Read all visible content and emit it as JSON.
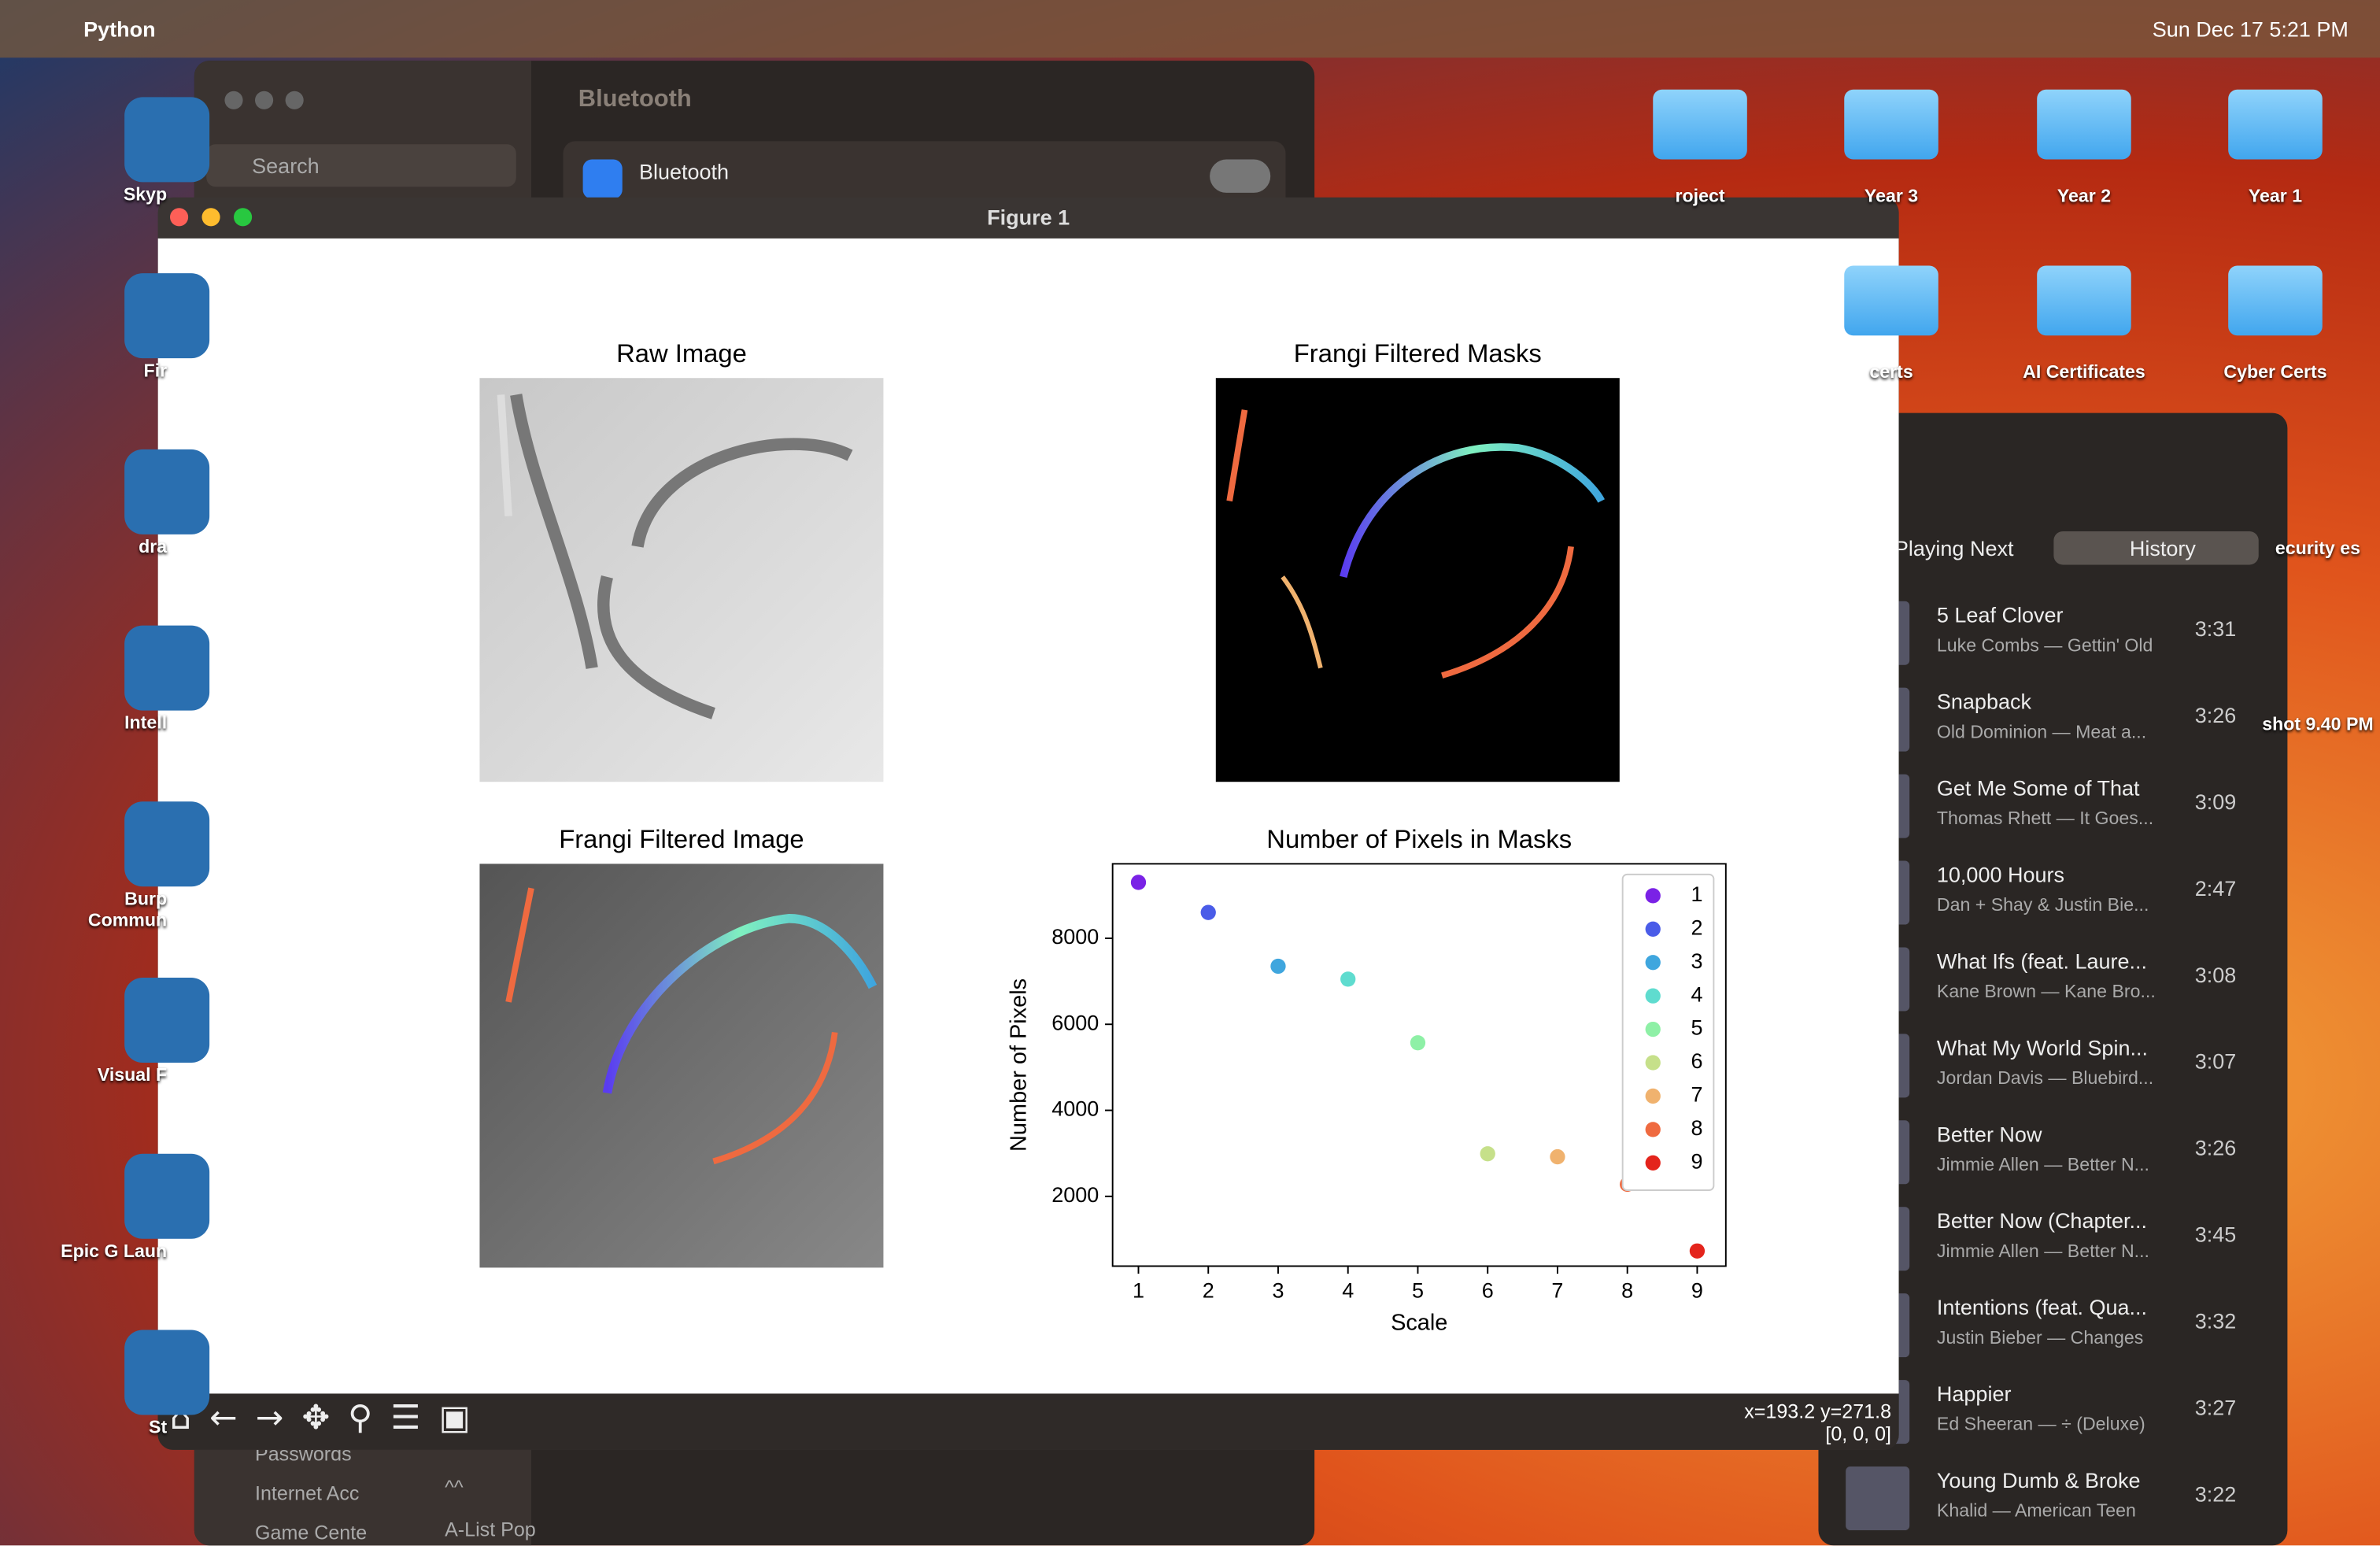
{
  "menu_bar": {
    "app": "Python",
    "clock": "Sun Dec 17  5:21 PM"
  },
  "desktop_left": [
    "Skyp",
    "Fir",
    "dra",
    "Intell",
    "Burp Commun",
    "Visual F",
    "Epic G Laun",
    "St"
  ],
  "desktop_right": [
    "roject",
    "Year 3",
    "Year 2",
    "Year 1",
    "certs",
    "AI Certificates",
    "Cyber Certs",
    "ecurity es",
    "shot 9.40 PM"
  ],
  "settings_window": {
    "title": "Bluetooth",
    "search": "Search",
    "row": "Bluetooth",
    "sidebar": [
      "Passwords",
      "Internet Acc",
      "Game Cente"
    ],
    "playlists": [
      "^^",
      "A-List Pop"
    ]
  },
  "figure_window": {
    "title": "Figure 1",
    "subplot_titles": [
      "Raw Image",
      "Frangi Filtered Masks",
      "Frangi Filtered Image"
    ],
    "status": [
      "x=193.2 y=271.8",
      "[0, 0, 0]"
    ]
  },
  "chart_data": {
    "type": "scatter",
    "title": "Number of Pixels in Masks",
    "x_label": "Scale",
    "y_label": "Number of Pixels",
    "xlim": [
      0.63,
      9.41
    ],
    "ylim": [
      378,
      9731
    ],
    "xticks": [
      1,
      2,
      3,
      4,
      5,
      6,
      7,
      8,
      9
    ],
    "yticks": [
      2000,
      4000,
      6000,
      8000
    ],
    "legend": "upper right",
    "series": [
      {
        "name": "1",
        "color": "#7a22e6",
        "x": [
          1
        ],
        "values": [
          9300
        ]
      },
      {
        "name": "2",
        "color": "#4a5ce8",
        "x": [
          2
        ],
        "values": [
          8600
        ]
      },
      {
        "name": "3",
        "color": "#3fa6de",
        "x": [
          3
        ],
        "values": [
          7350
        ]
      },
      {
        "name": "4",
        "color": "#5fdccf",
        "x": [
          4
        ],
        "values": [
          7050
        ]
      },
      {
        "name": "5",
        "color": "#8ef0a6",
        "x": [
          5
        ],
        "values": [
          5570
        ]
      },
      {
        "name": "6",
        "color": "#c6e08a",
        "x": [
          6
        ],
        "values": [
          2990
        ]
      },
      {
        "name": "7",
        "color": "#f0b26e",
        "x": [
          7
        ],
        "values": [
          2920
        ]
      },
      {
        "name": "8",
        "color": "#ef6a40",
        "x": [
          8
        ],
        "values": [
          2280
        ]
      },
      {
        "name": "9",
        "color": "#e4241c",
        "x": [
          9
        ],
        "values": [
          730
        ]
      }
    ]
  },
  "music": {
    "tabs": [
      "Playing Next",
      "History"
    ],
    "tracks": [
      {
        "title": "5 Leaf Clover",
        "artist": "Luke Combs — Gettin' Old",
        "time": "3:31"
      },
      {
        "title": "Snapback",
        "artist": "Old Dominion — Meat a...",
        "time": "3:26"
      },
      {
        "title": "Get Me Some of That",
        "artist": "Thomas Rhett — It Goes...",
        "time": "3:09"
      },
      {
        "title": "10,000 Hours",
        "artist": "Dan + Shay & Justin Bie...",
        "time": "2:47"
      },
      {
        "title": "What Ifs (feat. Laure...",
        "artist": "Kane Brown — Kane Bro...",
        "time": "3:08"
      },
      {
        "title": "What My World Spin...",
        "artist": "Jordan Davis — Bluebird...",
        "time": "3:07"
      },
      {
        "title": "Better Now",
        "artist": "Jimmie Allen — Better N...",
        "time": "3:26"
      },
      {
        "title": "Better Now (Chapter...",
        "artist": "Jimmie Allen — Better N...",
        "time": "3:45"
      },
      {
        "title": "Intentions (feat. Qua...",
        "artist": "Justin Bieber — Changes",
        "time": "3:32"
      },
      {
        "title": "Happier",
        "artist": "Ed Sheeran — ÷ (Deluxe)",
        "time": "3:27"
      },
      {
        "title": "Young Dumb & Broke",
        "artist": "Khalid — American Teen",
        "time": "3:22"
      }
    ]
  }
}
